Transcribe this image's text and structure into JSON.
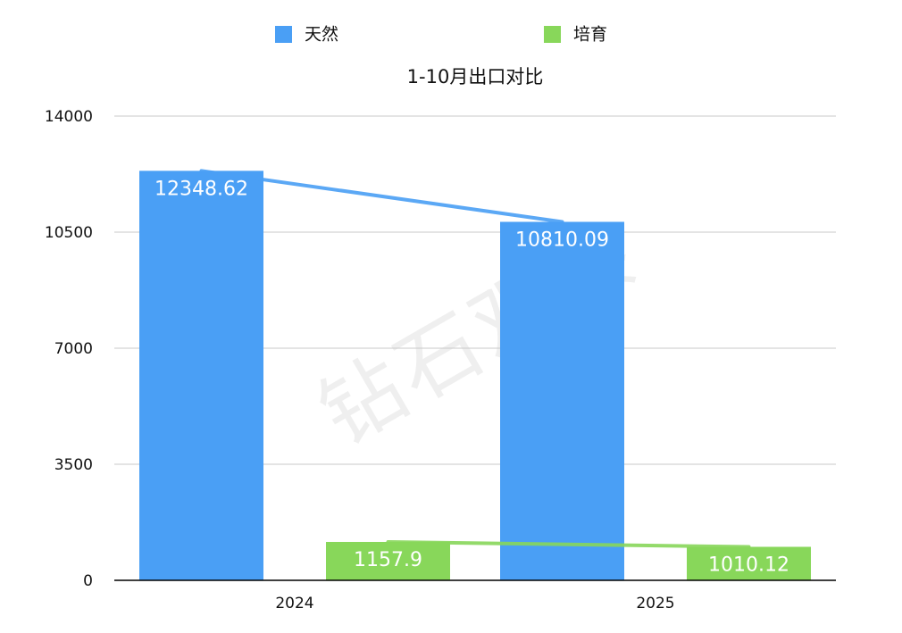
{
  "chart_data": {
    "type": "bar",
    "title": "1-10月出口对比",
    "categories": [
      "2024",
      "2025"
    ],
    "series": [
      {
        "name": "天然",
        "values": [
          12348.62,
          10810.09
        ],
        "color": "#4a9ff5"
      },
      {
        "name": "培育",
        "values": [
          1157.9,
          1010.12
        ],
        "color": "#88d75a"
      }
    ],
    "data_labels": {
      "天然": [
        "12348.62",
        "10810.09"
      ],
      "培育": [
        "1157.9",
        "1010.12"
      ]
    },
    "trend_lines": true,
    "ylim": [
      0,
      14000
    ],
    "yticks": [
      0,
      3500,
      7000,
      10500,
      14000
    ],
    "xlabel": "",
    "ylabel": "",
    "grid": true,
    "legend_position": "top-center",
    "watermark": "钻石观察"
  }
}
